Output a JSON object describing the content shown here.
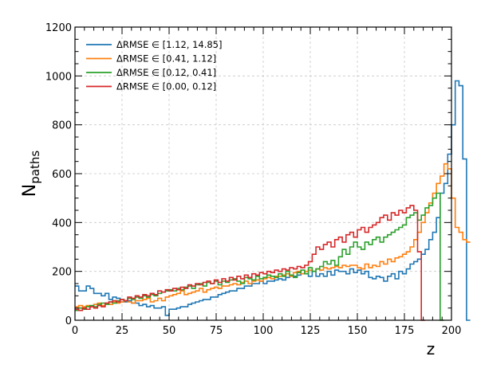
{
  "chart_data": {
    "type": "line",
    "drawstyle": "steps",
    "title": "",
    "xlabel": "z",
    "ylabel_main": "N",
    "ylabel_sub": "paths",
    "xlim": [
      0,
      200
    ],
    "ylim": [
      0,
      1200
    ],
    "xticks": [
      0,
      25,
      50,
      75,
      100,
      125,
      150,
      175,
      200
    ],
    "yticks": [
      0,
      200,
      400,
      600,
      800,
      1000,
      1200
    ],
    "grid": true,
    "legend_position": "top-left",
    "bin_width": 2,
    "series": [
      {
        "name": "ΔRMSE ∈ [1.12, 14.85]",
        "color": "#1f77b4",
        "values": [
          140,
          120,
          120,
          140,
          130,
          110,
          110,
          100,
          110,
          85,
          95,
          90,
          75,
          75,
          80,
          70,
          70,
          60,
          65,
          55,
          60,
          50,
          50,
          55,
          20,
          45,
          45,
          50,
          55,
          55,
          65,
          70,
          75,
          80,
          85,
          85,
          95,
          95,
          105,
          110,
          115,
          120,
          120,
          130,
          130,
          140,
          140,
          150,
          150,
          160,
          150,
          160,
          160,
          165,
          170,
          165,
          175,
          180,
          180,
          185,
          190,
          190,
          180,
          200,
          180,
          190,
          180,
          200,
          185,
          205,
          200,
          200,
          190,
          210,
          195,
          205,
          190,
          200,
          175,
          170,
          180,
          175,
          160,
          180,
          190,
          170,
          200,
          190,
          210,
          230,
          240,
          250,
          270,
          290,
          330,
          360,
          420,
          520,
          560,
          680,
          800,
          980,
          960,
          660,
          0
        ]
      },
      {
        "name": "ΔRMSE ∈ [0.41, 1.12]",
        "color": "#ff7f0e",
        "values": [
          55,
          60,
          55,
          60,
          55,
          65,
          70,
          60,
          70,
          65,
          75,
          70,
          75,
          80,
          75,
          70,
          80,
          80,
          85,
          90,
          75,
          80,
          90,
          80,
          95,
          100,
          105,
          110,
          120,
          105,
          110,
          115,
          120,
          130,
          115,
          125,
          130,
          135,
          130,
          140,
          140,
          145,
          150,
          145,
          155,
          160,
          150,
          160,
          165,
          160,
          170,
          175,
          170,
          180,
          180,
          185,
          190,
          180,
          195,
          200,
          190,
          200,
          205,
          200,
          210,
          205,
          215,
          210,
          215,
          220,
          215,
          225,
          220,
          225,
          225,
          215,
          210,
          230,
          215,
          225,
          220,
          240,
          230,
          250,
          240,
          255,
          260,
          270,
          280,
          300,
          330,
          360,
          400,
          440,
          480,
          520,
          560,
          590,
          640,
          620,
          500,
          380,
          360,
          330,
          320
        ]
      },
      {
        "name": "ΔRMSE ∈ [0.12, 0.41]",
        "color": "#2ca02c",
        "values": [
          40,
          50,
          45,
          55,
          60,
          55,
          65,
          70,
          65,
          75,
          70,
          80,
          85,
          80,
          90,
          85,
          95,
          90,
          100,
          95,
          105,
          100,
          110,
          115,
          120,
          125,
          120,
          130,
          125,
          135,
          140,
          130,
          145,
          150,
          140,
          155,
          150,
          160,
          145,
          160,
          155,
          165,
          170,
          160,
          150,
          175,
          170,
          165,
          180,
          170,
          175,
          185,
          180,
          175,
          190,
          180,
          200,
          185,
          175,
          195,
          205,
          190,
          215,
          200,
          210,
          220,
          240,
          230,
          245,
          225,
          260,
          290,
          270,
          300,
          320,
          300,
          290,
          320,
          310,
          330,
          340,
          320,
          340,
          350,
          360,
          370,
          380,
          390,
          420,
          430,
          440,
          410,
          430,
          460,
          470,
          500,
          520,
          0
        ]
      },
      {
        "name": "ΔRMSE ∈ [0.00, 0.12]",
        "color": "#d62728",
        "values": [
          45,
          40,
          50,
          45,
          55,
          50,
          60,
          55,
          70,
          75,
          80,
          75,
          85,
          80,
          95,
          90,
          100,
          95,
          105,
          100,
          110,
          105,
          120,
          115,
          125,
          120,
          130,
          125,
          135,
          130,
          145,
          140,
          150,
          145,
          155,
          160,
          150,
          165,
          155,
          170,
          160,
          175,
          165,
          180,
          170,
          185,
          175,
          190,
          185,
          195,
          190,
          200,
          195,
          205,
          200,
          210,
          205,
          215,
          210,
          220,
          215,
          225,
          240,
          270,
          300,
          290,
          310,
          320,
          300,
          330,
          340,
          320,
          350,
          360,
          340,
          370,
          380,
          360,
          380,
          390,
          400,
          420,
          430,
          410,
          440,
          430,
          450,
          440,
          460,
          470,
          450,
          280,
          0
        ]
      }
    ]
  }
}
